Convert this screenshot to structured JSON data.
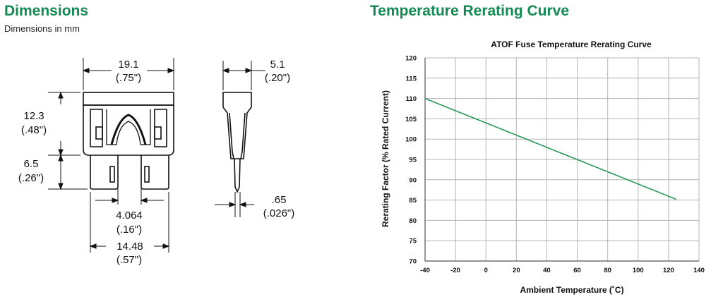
{
  "dimensions": {
    "title": "Dimensions",
    "subtitle": "Dimensions in mm",
    "width_mm": "19.1",
    "width_in": "(.75\")",
    "top_height_mm": "12.3",
    "top_height_in": "(.48\")",
    "blade_height_mm": "6.5",
    "blade_height_in": "(.26\")",
    "blade_gap_mm": "4.064",
    "blade_gap_in": "(.16\")",
    "blade_span_mm": "14.48",
    "blade_span_in": "(.57\")",
    "side_width_mm": "5.1",
    "side_width_in": "(.20\")",
    "blade_thickness_mm": ".65",
    "blade_thickness_in": "(.026\")"
  },
  "curve": {
    "heading": "Temperature Rerating Curve"
  },
  "colors": {
    "heading_green": "#138a52",
    "line_green": "#2a9a5c",
    "grid": "#b5b5b5"
  },
  "chart_data": {
    "type": "line",
    "title": "ATOF Fuse Temperature Rerating Curve",
    "xlabel": "Ambient Temperature (˚C)",
    "ylabel": "Rerating Factor (% Rated Current)",
    "xlim": [
      -40,
      140
    ],
    "ylim": [
      70,
      120
    ],
    "xticks": [
      -40,
      -20,
      0,
      20,
      40,
      60,
      80,
      100,
      120,
      140
    ],
    "yticks": [
      70,
      75,
      80,
      85,
      90,
      95,
      100,
      105,
      110,
      115,
      120
    ],
    "grid": true,
    "series": [
      {
        "x": [
          -40,
          125
        ],
        "y": [
          110,
          85.2
        ]
      }
    ]
  }
}
